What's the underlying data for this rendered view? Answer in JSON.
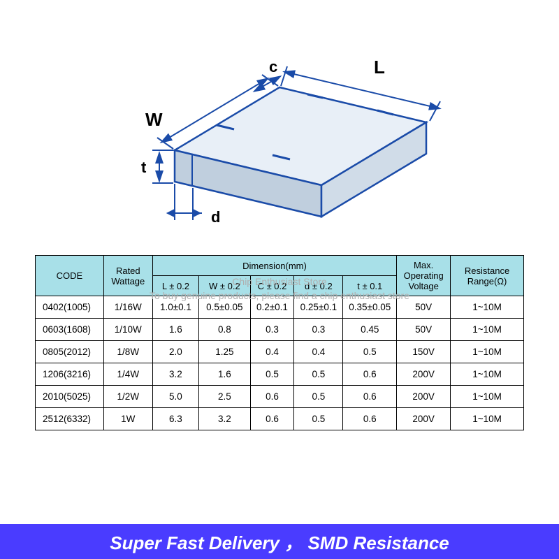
{
  "diagram": {
    "stroke_color": "#1a4ba8",
    "fill_top": "#e8eff7",
    "fill_side": "#d0dce8",
    "fill_front": "#c0cfde",
    "labels": {
      "L": "L",
      "W": "W",
      "c": "c",
      "t": "t",
      "d": "d"
    }
  },
  "watermark": {
    "line1": "Chip Enthusiast Store",
    "line2": "To buy genuine products, please find a chip enthusiast store"
  },
  "table": {
    "header": {
      "code": "CODE",
      "rated_wattage": "Rated Wattage",
      "dimension": "Dimension(mm)",
      "L": "L ± 0.2",
      "W": "W ± 0.2",
      "C": "C ± 0.2",
      "d": "d ± 0.2",
      "t": "t ± 0.1",
      "max_voltage_l1": "Max.",
      "max_voltage_l2": "Operating",
      "max_voltage_l3": "Voltage",
      "resistance_l1": "Resistance",
      "resistance_l2": "Range(Ω)"
    },
    "rows": [
      {
        "code": "0402(1005)",
        "wattage": "1/16W",
        "L": "1.0±0.1",
        "W": "0.5±0.05",
        "C": "0.2±0.1",
        "d": "0.25±0.1",
        "t": "0.35±0.05",
        "voltage": "50V",
        "range": "1~10M"
      },
      {
        "code": "0603(1608)",
        "wattage": "1/10W",
        "L": "1.6",
        "W": "0.8",
        "C": "0.3",
        "d": "0.3",
        "t": "0.45",
        "voltage": "50V",
        "range": "1~10M"
      },
      {
        "code": "0805(2012)",
        "wattage": "1/8W",
        "L": "2.0",
        "W": "1.25",
        "C": "0.4",
        "d": "0.4",
        "t": "0.5",
        "voltage": "150V",
        "range": "1~10M"
      },
      {
        "code": "1206(3216)",
        "wattage": "1/4W",
        "L": "3.2",
        "W": "1.6",
        "C": "0.5",
        "d": "0.5",
        "t": "0.6",
        "voltage": "200V",
        "range": "1~10M"
      },
      {
        "code": "2010(5025)",
        "wattage": "1/2W",
        "L": "5.0",
        "W": "2.5",
        "C": "0.6",
        "d": "0.5",
        "t": "0.6",
        "voltage": "200V",
        "range": "1~10M"
      },
      {
        "code": "2512(6332)",
        "wattage": "1W",
        "L": "6.3",
        "W": "3.2",
        "C": "0.6",
        "d": "0.5",
        "t": "0.6",
        "voltage": "200V",
        "range": "1~10M"
      }
    ]
  },
  "footer": {
    "text": "Super Fast Delivery ， SMD Resistance"
  },
  "colors": {
    "header_bg": "#a8e0e8",
    "border": "#000000",
    "banner_bg": "#4a3cff",
    "banner_text": "#ffffff",
    "watermark_text": "#b0b0b0"
  }
}
